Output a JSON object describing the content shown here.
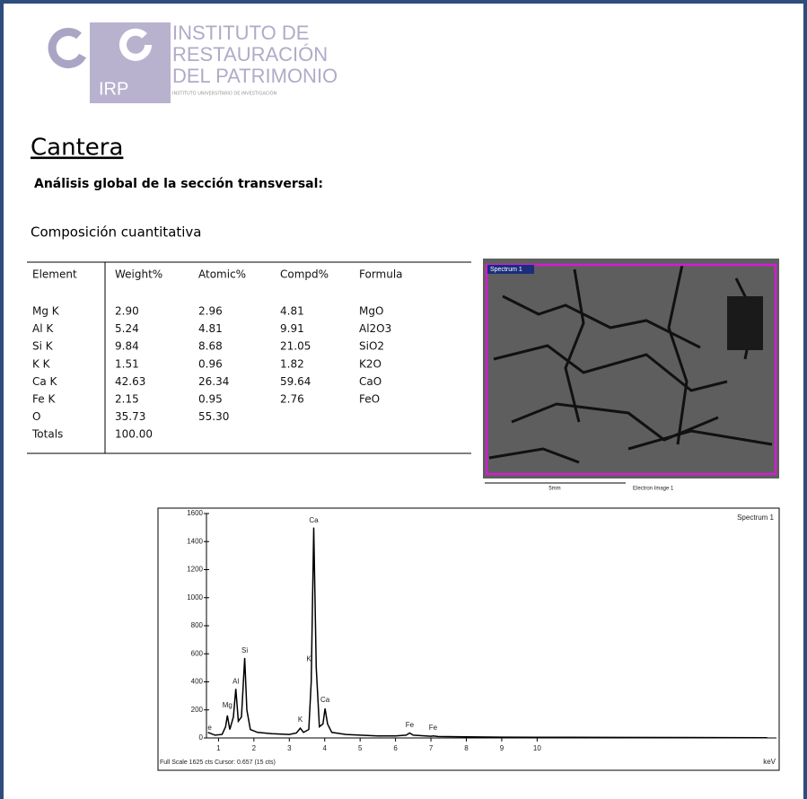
{
  "header": {
    "logo_initials": "IRP",
    "institute": [
      "INSTITUTO  DE",
      "RESTAURACIÓN",
      "DEL PATRIMONIO"
    ],
    "institute_sub": "INSTITUTO UNIVERSITARIO DE INVESTIGACIÓN"
  },
  "title": "Cantera",
  "subtitle": "Análisis global de la sección transversal:",
  "section": "Composición cuantitativa",
  "table": {
    "columns": [
      "Element",
      "Weight%",
      "Atomic%",
      "Compd%",
      "Formula"
    ],
    "rows": [
      [
        "Mg K",
        "2.90",
        "2.96",
        "4.81",
        "MgO"
      ],
      [
        "Al K",
        "5.24",
        "4.81",
        "9.91",
        "Al2O3"
      ],
      [
        "Si K",
        "9.84",
        "8.68",
        "21.05",
        "SiO2"
      ],
      [
        "K K",
        "1.51",
        "0.96",
        "1.82",
        "K2O"
      ],
      [
        "Ca K",
        "42.63",
        "26.34",
        "59.64",
        "CaO"
      ],
      [
        "Fe K",
        "2.15",
        "0.95",
        "2.76",
        "FeO"
      ],
      [
        "O",
        "35.73",
        "55.30"
      ],
      [
        "Totals",
        "100.00"
      ]
    ]
  },
  "image": {
    "label": "Spectrum 1",
    "scale": "5mm",
    "caption": "Electron Image 1"
  },
  "chart_data": {
    "type": "line",
    "title": "Spectrum 1",
    "x_label": "keV",
    "footer": "Full Scale 1625 cts Cursor: 0.657  (15 cts)",
    "color": "#000000",
    "x": [
      0.7,
      0.9,
      1.1,
      1.2,
      1.25,
      1.32,
      1.42,
      1.49,
      1.56,
      1.65,
      1.74,
      1.8,
      1.9,
      2.1,
      2.5,
      3.0,
      3.2,
      3.31,
      3.4,
      3.55,
      3.62,
      3.69,
      3.76,
      3.85,
      3.95,
      4.01,
      4.08,
      4.2,
      4.6,
      5.0,
      5.5,
      6.0,
      6.3,
      6.4,
      6.5,
      7.0,
      7.06,
      7.2,
      8.0,
      9.0,
      10.0,
      12.0,
      14.0,
      16.5
    ],
    "values": [
      40,
      20,
      25,
      80,
      160,
      60,
      150,
      350,
      120,
      150,
      570,
      200,
      60,
      40,
      30,
      25,
      35,
      70,
      40,
      60,
      400,
      1500,
      500,
      80,
      100,
      210,
      100,
      40,
      25,
      20,
      15,
      15,
      20,
      35,
      20,
      12,
      15,
      10,
      8,
      6,
      5,
      4,
      3,
      2
    ],
    "peak_labels": [
      {
        "text": "e",
        "x": 0.75,
        "y": 70
      },
      {
        "text": "Mg",
        "x": 1.25,
        "y": 230
      },
      {
        "text": "Al",
        "x": 1.49,
        "y": 400
      },
      {
        "text": "Si",
        "x": 1.74,
        "y": 620
      },
      {
        "text": "K",
        "x": 3.31,
        "y": 130
      },
      {
        "text": "K",
        "x": 3.55,
        "y": 560
      },
      {
        "text": "Ca",
        "x": 3.69,
        "y": 1550
      },
      {
        "text": "Ca",
        "x": 4.01,
        "y": 270
      },
      {
        "text": "Fe",
        "x": 6.4,
        "y": 90
      },
      {
        "text": "Fe",
        "x": 7.06,
        "y": 70
      }
    ],
    "xlim": [
      0.66,
      16.76
    ],
    "ylim": [
      0,
      1600
    ],
    "xticks": [
      1,
      2,
      3,
      4,
      5,
      6,
      7,
      8,
      9,
      10
    ],
    "yticks": [
      0,
      200,
      400,
      600,
      800,
      1000,
      1200,
      1400,
      1600
    ]
  }
}
